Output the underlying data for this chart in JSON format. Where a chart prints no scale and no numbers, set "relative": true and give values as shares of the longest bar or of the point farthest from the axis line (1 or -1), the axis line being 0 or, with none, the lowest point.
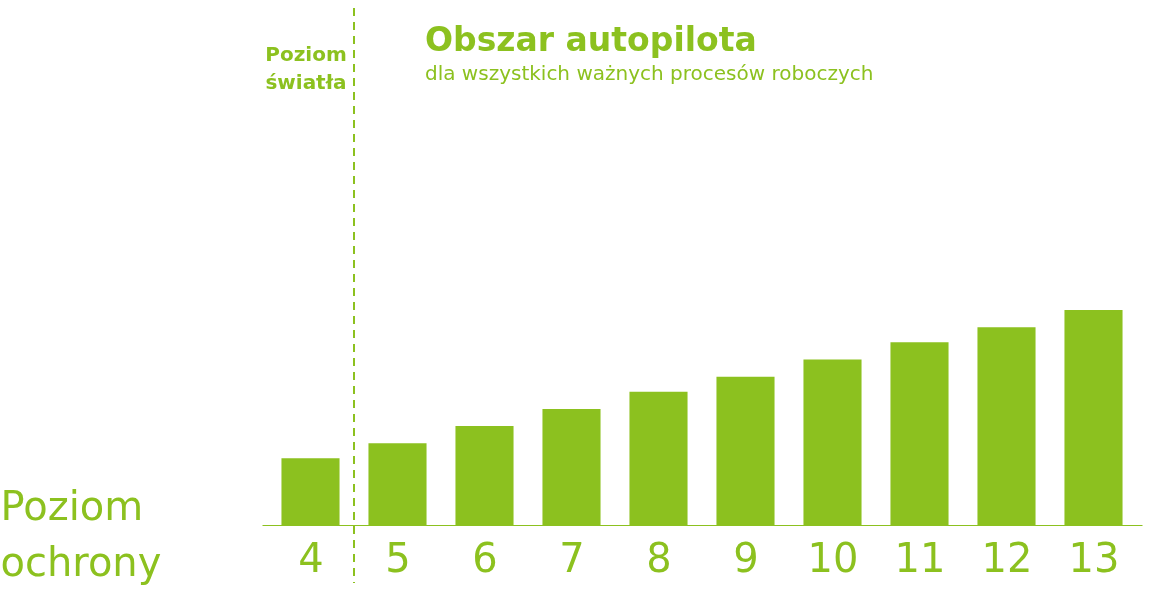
{
  "chart_data": {
    "type": "bar",
    "title": "Obszar autopilota",
    "subtitle": "dla wszystkich ważnych procesów roboczych",
    "xlabel": "Poziom ochrony",
    "x": [
      4,
      5,
      6,
      7,
      8,
      9,
      10,
      11,
      12,
      13
    ],
    "xlim": [
      3.5,
      13.5
    ],
    "xticks": [
      4,
      5,
      6,
      7,
      8,
      9,
      10,
      11,
      12,
      13
    ],
    "values": [
      0.31,
      0.38,
      0.46,
      0.54,
      0.62,
      0.69,
      0.77,
      0.85,
      0.92,
      1
    ],
    "color": "#8cc11f",
    "relative": true,
    "ref_lines": [
      {
        "axis": "x",
        "value": 4.5,
        "line_style": "dashed"
      }
    ],
    "annotations": [
      "Poziom światła"
    ]
  }
}
